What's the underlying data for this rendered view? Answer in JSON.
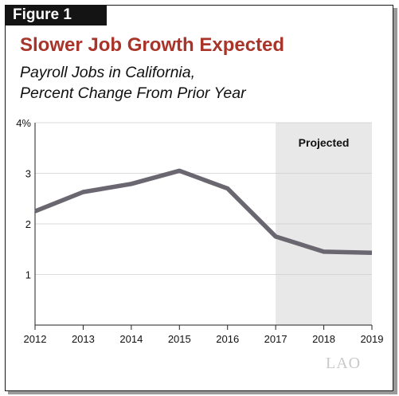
{
  "figure_label": "Figure 1",
  "logo_text": "LAO",
  "chart_data": {
    "type": "line",
    "title": "Slower Job Growth Expected",
    "subtitle_lines": [
      "Payroll Jobs in California,",
      "Percent Change From Prior Year"
    ],
    "x": [
      2012,
      2013,
      2014,
      2015,
      2016,
      2017,
      2018,
      2019
    ],
    "x_tick_labels": [
      "2012",
      "2013",
      "2014",
      "2015",
      "2016",
      "2017",
      "2018",
      "2019"
    ],
    "series": [
      {
        "values": [
          2.25,
          2.63,
          2.79,
          3.05,
          2.7,
          1.75,
          1.45,
          1.43
        ],
        "color": "#6b6770"
      }
    ],
    "ylim": [
      0,
      4
    ],
    "y_ticks": [
      1,
      2,
      3,
      4
    ],
    "y_tick_labels": [
      "1",
      "2",
      "3",
      "4%"
    ],
    "grid": true,
    "shaded_region": {
      "x_start": 2017,
      "x_end": 2019,
      "label": "Projected",
      "color": "#e8e8e8"
    }
  }
}
